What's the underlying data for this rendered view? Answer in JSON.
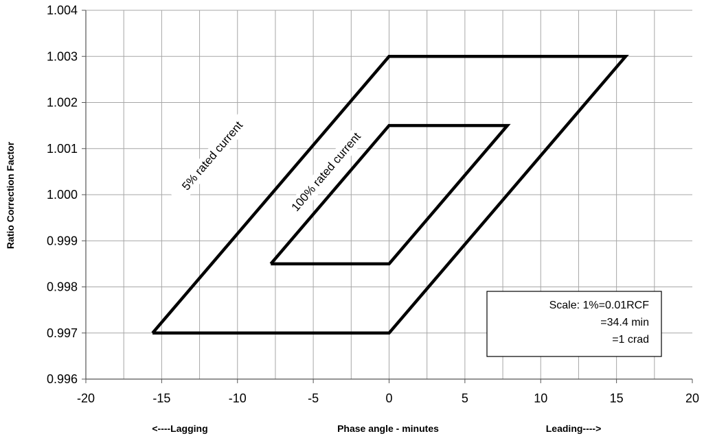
{
  "chart_data": {
    "type": "line",
    "title": "",
    "xlabel": "Phase angle - minutes",
    "ylabel": "Ratio Correction Factor",
    "xlabel_left": "<----Lagging",
    "xlabel_right": "Leading---->",
    "xlim": [
      -20,
      20
    ],
    "ylim": [
      0.996,
      1.004
    ],
    "x_ticks": [
      -20,
      -15,
      -10,
      -5,
      0,
      5,
      10,
      15,
      20
    ],
    "x_tick_labels": [
      "-20",
      "-15",
      "-10",
      "-5",
      "0",
      "5",
      "10",
      "15",
      "20"
    ],
    "y_ticks": [
      0.996,
      0.997,
      0.998,
      0.999,
      1.0,
      1.001,
      1.002,
      1.003,
      1.004
    ],
    "y_tick_labels": [
      "0.996",
      "0.997",
      "0.998",
      "0.999",
      "1.000",
      "1.001",
      "1.002",
      "1.003",
      "1.004"
    ],
    "x_minor_step": 2.5,
    "grid": true,
    "series": [
      {
        "name": "5% rated current",
        "color": "#000000",
        "points": [
          [
            -15.6,
            0.997
          ],
          [
            0,
            0.997
          ],
          [
            15.6,
            1.003
          ],
          [
            0,
            1.003
          ],
          [
            -15.6,
            0.997
          ]
        ]
      },
      {
        "name": "100% rated current",
        "color": "#000000",
        "points": [
          [
            -7.8,
            0.9985
          ],
          [
            0,
            0.9985
          ],
          [
            7.8,
            1.0015
          ],
          [
            0,
            1.0015
          ],
          [
            -7.8,
            0.9985
          ]
        ]
      }
    ],
    "annotations": [
      {
        "text": "5% rated current",
        "x": -11.5,
        "y": 1.0008
      },
      {
        "text": "100% rated current",
        "x": -4.0,
        "y": 1.00045
      }
    ],
    "scale_box": {
      "lines": [
        "Scale: 1%=0.01RCF",
        "=34.4 min",
        "=1 crad"
      ]
    }
  }
}
